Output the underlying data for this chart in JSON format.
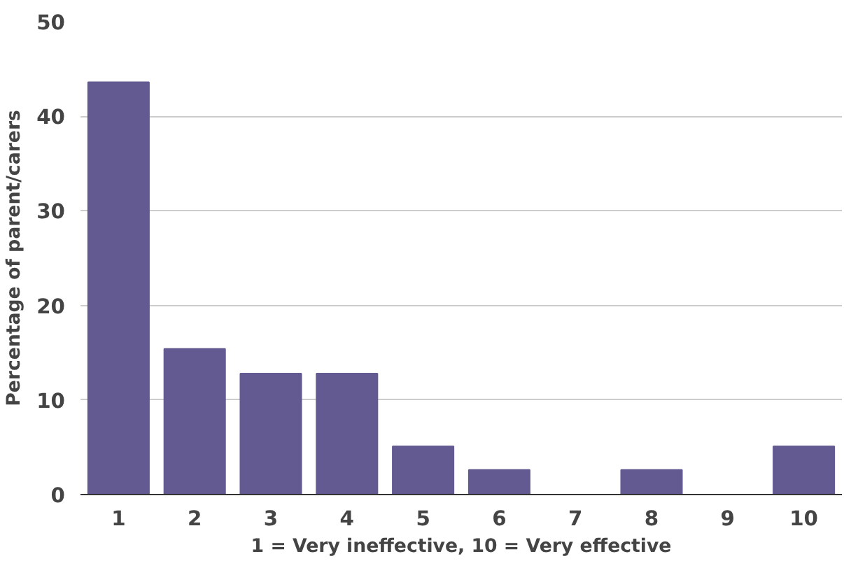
{
  "chart_data": {
    "type": "bar",
    "xlabel": "1 = Very ineffective, 10 = Very effective",
    "ylabel": "Percentage of parent/carers",
    "categories": [
      "1",
      "2",
      "3",
      "4",
      "5",
      "6",
      "7",
      "8",
      "9",
      "10"
    ],
    "values": [
      43.6,
      15.4,
      12.8,
      12.8,
      5.1,
      2.6,
      0,
      2.6,
      0,
      5.1
    ],
    "color": "#635a92",
    "ylim": [
      0,
      50
    ],
    "yticks": [
      0,
      10,
      20,
      30,
      40,
      50
    ],
    "grid": "y"
  }
}
